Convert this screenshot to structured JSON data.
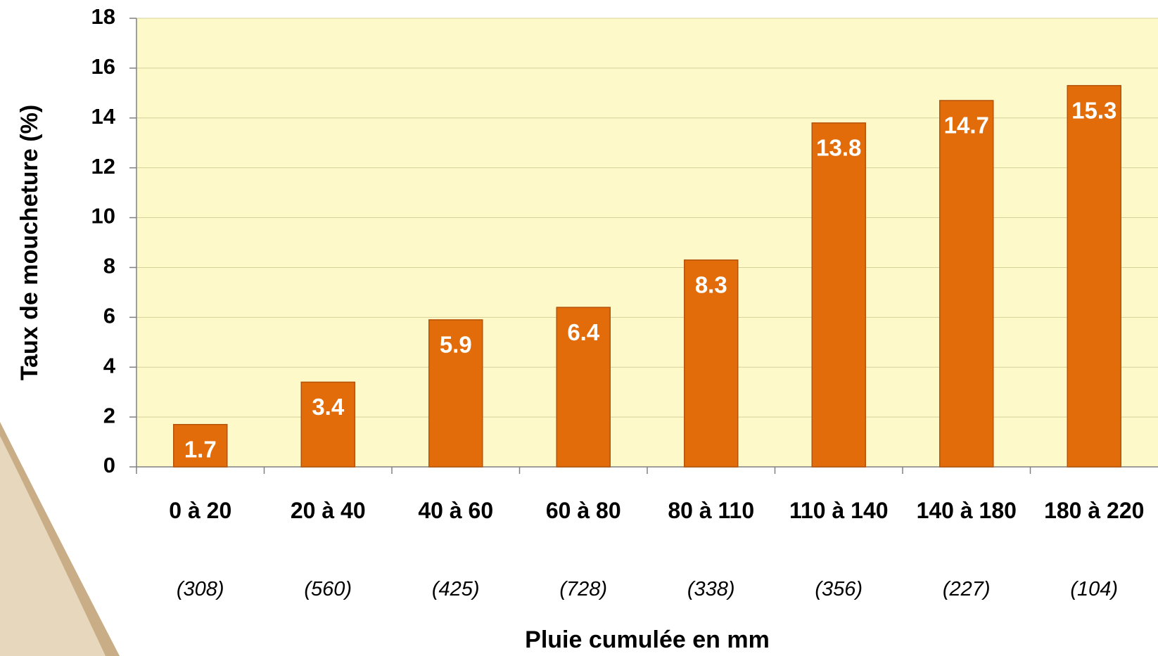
{
  "chart_data": {
    "type": "bar",
    "y_label": "Taux de moucheture (%)",
    "x_label": "Pluie cumulée en mm",
    "categories": [
      "0 à 20",
      "20 à 40",
      "40 à 60",
      "60 à 80",
      "80 à 110",
      "110 à 140",
      "140 à 180",
      "180 à 220"
    ],
    "sample_sizes": [
      "(308)",
      "(560)",
      "(425)",
      "(728)",
      "(338)",
      "(356)",
      "(227)",
      "(104)"
    ],
    "values": [
      1.7,
      3.4,
      5.9,
      6.4,
      8.3,
      13.8,
      14.7,
      15.3
    ],
    "color": "#e36c0a",
    "ylim": [
      0,
      18
    ],
    "yticks": [
      0,
      2,
      4,
      6,
      8,
      10,
      12,
      14,
      16,
      18
    ],
    "grid": true
  }
}
